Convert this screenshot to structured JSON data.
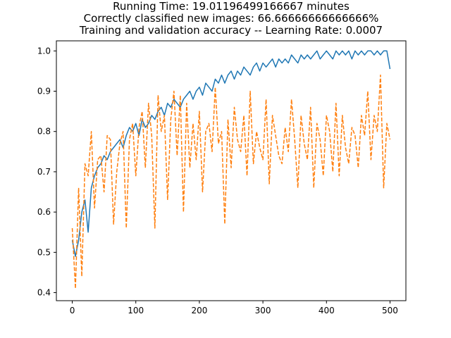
{
  "chart_data": {
    "type": "line",
    "title_lines": [
      "Running Time: 19.01196499166667 minutes",
      "Correctly classified new images: 66.66666666666666%",
      "Training and validation accuracy -- Learning Rate: 0.0007"
    ],
    "xlabel": "",
    "ylabel": "",
    "xlim": [
      -25,
      525
    ],
    "ylim": [
      0.38,
      1.025
    ],
    "x_ticks": [
      0,
      100,
      200,
      300,
      400,
      500
    ],
    "x_tick_labels": [
      "0",
      "100",
      "200",
      "300",
      "400",
      "500"
    ],
    "y_ticks": [
      0.4,
      0.5,
      0.6,
      0.7,
      0.8,
      0.9,
      1.0
    ],
    "y_tick_labels": [
      "0.4",
      "0.5",
      "0.6",
      "0.7",
      "0.8",
      "0.9",
      "1.0"
    ],
    "grid": false,
    "legend": "none",
    "series": [
      {
        "style": "solid",
        "color": "#1f77b4",
        "points_x_step": 5,
        "x_start": 0,
        "values": [
          0.53,
          0.49,
          0.53,
          0.6,
          0.63,
          0.55,
          0.66,
          0.69,
          0.71,
          0.72,
          0.74,
          0.73,
          0.75,
          0.76,
          0.77,
          0.78,
          0.76,
          0.79,
          0.81,
          0.8,
          0.82,
          0.79,
          0.83,
          0.81,
          0.82,
          0.84,
          0.83,
          0.85,
          0.86,
          0.84,
          0.87,
          0.86,
          0.88,
          0.87,
          0.86,
          0.88,
          0.89,
          0.9,
          0.88,
          0.9,
          0.91,
          0.89,
          0.92,
          0.91,
          0.9,
          0.93,
          0.92,
          0.94,
          0.92,
          0.94,
          0.95,
          0.93,
          0.95,
          0.94,
          0.96,
          0.95,
          0.94,
          0.96,
          0.97,
          0.95,
          0.97,
          0.96,
          0.97,
          0.98,
          0.96,
          0.98,
          0.97,
          0.98,
          0.97,
          0.99,
          0.98,
          0.97,
          0.99,
          0.98,
          0.99,
          0.98,
          0.99,
          1.0,
          0.98,
          0.99,
          1.0,
          0.99,
          0.98,
          1.0,
          0.99,
          1.0,
          0.99,
          1.0,
          0.98,
          1.0,
          0.99,
          1.0,
          0.99,
          1.0,
          1.0,
          0.99,
          1.0,
          0.99,
          1.0,
          1.0,
          0.955
        ]
      },
      {
        "style": "dashed",
        "color": "#ff7f0e",
        "points_x_step": 5,
        "x_start": 0,
        "values": [
          0.56,
          0.41,
          0.66,
          0.44,
          0.72,
          0.69,
          0.8,
          0.61,
          0.73,
          0.74,
          0.65,
          0.79,
          0.78,
          0.57,
          0.7,
          0.77,
          0.8,
          0.56,
          0.78,
          0.82,
          0.69,
          0.81,
          0.85,
          0.71,
          0.87,
          0.79,
          0.56,
          0.89,
          0.8,
          0.84,
          0.63,
          0.83,
          0.9,
          0.74,
          0.89,
          0.6,
          0.87,
          0.71,
          0.82,
          0.73,
          0.85,
          0.65,
          0.8,
          0.82,
          0.75,
          0.91,
          0.77,
          0.8,
          0.57,
          0.83,
          0.71,
          0.86,
          0.78,
          0.75,
          0.84,
          0.69,
          0.9,
          0.72,
          0.8,
          0.76,
          0.73,
          0.88,
          0.67,
          0.84,
          0.79,
          0.74,
          0.72,
          0.81,
          0.75,
          0.88,
          0.78,
          0.66,
          0.84,
          0.77,
          0.73,
          0.86,
          0.66,
          0.82,
          0.78,
          0.69,
          0.84,
          0.8,
          0.7,
          0.87,
          0.69,
          0.84,
          0.76,
          0.72,
          0.81,
          0.79,
          0.71,
          0.84,
          0.79,
          0.9,
          0.73,
          0.84,
          0.8,
          0.94,
          0.66,
          0.82,
          0.78
        ]
      }
    ]
  }
}
